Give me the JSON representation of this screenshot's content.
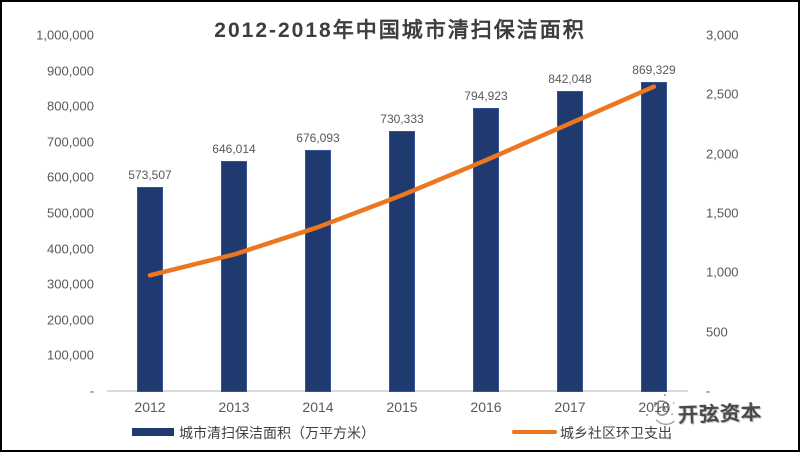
{
  "title": "2012-2018年中国城市清扫保洁面积",
  "colors": {
    "bar": "#1e3a6e",
    "bar_edge": "#34539b",
    "line": "#ed7621",
    "axis_text": "#595959",
    "baseline": "#d9d9d9",
    "title_text": "#3d3d3d",
    "legend_text": "#404040"
  },
  "chart_data": {
    "type": "bar",
    "title": "2012-2018年中国城市清扫保洁面积",
    "categories": [
      "2012",
      "2013",
      "2014",
      "2015",
      "2016",
      "2017",
      "2018"
    ],
    "series": [
      {
        "name": "城市清扫保洁面积（万平方米）",
        "type": "bar",
        "axis": "left",
        "values": [
          573507,
          646014,
          676093,
          730333,
          794923,
          842048,
          869329
        ],
        "data_labels": [
          "573,507",
          "646,014",
          "676,093",
          "730,333",
          "794,923",
          "842,048",
          "869,329"
        ]
      },
      {
        "name": "城乡社区环卫支出",
        "type": "line",
        "axis": "right",
        "values": [
          975,
          1150,
          1380,
          1650,
          1945,
          2255,
          2565
        ]
      }
    ],
    "left_axis": {
      "labels": [
        "1,000,000",
        "900,000",
        "800,000",
        "700,000",
        "600,000",
        "500,000",
        "400,000",
        "300,000",
        "200,000",
        "100,000",
        "-"
      ],
      "values": [
        1000000,
        900000,
        800000,
        700000,
        600000,
        500000,
        400000,
        300000,
        200000,
        100000,
        0
      ],
      "min": 0,
      "max": 1000000
    },
    "right_axis": {
      "labels": [
        "3,000",
        "2,500",
        "2,000",
        "1,500",
        "1,000",
        "500",
        "-"
      ],
      "values": [
        3000,
        2500,
        2000,
        1500,
        1000,
        500,
        0
      ],
      "min": 0,
      "max": 3000
    },
    "grid": false,
    "legend_position": "bottom"
  },
  "watermark": {
    "icon": "scribble-spiral-icon",
    "text": "开弦资本"
  }
}
